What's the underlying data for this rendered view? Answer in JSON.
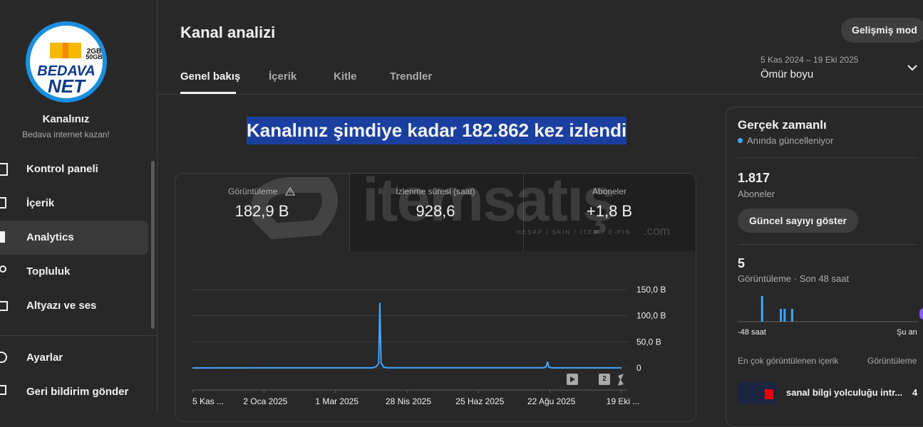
{
  "sidebar": {
    "logo": {
      "top": "2GB",
      "bottom": "50GB",
      "line1": "BEDAVA",
      "line2": "NET"
    },
    "channel_name": "Kanalınız",
    "channel_subtitle": "Bedava internet kazan!",
    "menu": [
      "Kontrol paneli",
      "İçerik",
      "Analytics",
      "Topluluk",
      "Altyazı ve ses"
    ],
    "footer_menu": [
      "Ayarlar",
      "Geri bildirim gönder"
    ]
  },
  "header": {
    "title": "Kanal analizi",
    "advanced_button": "Gelişmiş mod",
    "tabs": [
      "Genel bakış",
      "İçerik",
      "Kitle",
      "Trendler"
    ],
    "date_range": "5 Kas 2024 – 19 Eki 2025",
    "period": "Ömür boyu"
  },
  "headline": "Kanalınız şimdiye kadar 182.862 kez izlendi",
  "metrics": [
    {
      "label": "Görüntüleme",
      "value": "182,9 B"
    },
    {
      "label": "İzlenme süresi (saat)",
      "value": "928,6"
    },
    {
      "label": "Aboneler",
      "value": "+1,8 B"
    }
  ],
  "watermark": {
    "brand": "itemsatış",
    "tagline": "HESAP / SKIN / ITEM / E-PIN",
    "suffix": ".com"
  },
  "chart": {
    "type": "line",
    "color": "#3ea6ff",
    "grid": true,
    "badge": "2",
    "xlim": [
      "2024-11-05",
      "2025-10-19"
    ],
    "xticks": [
      {
        "value": "2024-11-05",
        "label": "5 Kas ..."
      },
      {
        "value": "2025-01-02",
        "label": "2 Oca 2025"
      },
      {
        "value": "2025-03-01",
        "label": "1 Mar 2025"
      },
      {
        "value": "2025-04-28",
        "label": "28 Nis 2025"
      },
      {
        "value": "2025-06-25",
        "label": "25 Haz 2025"
      },
      {
        "value": "2025-08-22",
        "label": "22 Ağu 2025"
      },
      {
        "value": "2025-10-19",
        "label": "19 Eki ..."
      }
    ],
    "ylim": [
      0,
      150000
    ],
    "yticks": [
      0,
      {
        "value": 50000,
        "label": "50,0 B"
      },
      {
        "value": 100000,
        "label": "100,0 B"
      },
      {
        "value": 150000,
        "label": "150,0 B"
      }
    ],
    "x": [
      "2024-11-05",
      "2025-03-31",
      "2025-04-03",
      "2025-04-05",
      "2025-04-06",
      "2025-04-07",
      "2025-04-09",
      "2025-04-12",
      "2025-08-17",
      "2025-08-19",
      "2025-08-20",
      "2025-08-21",
      "2025-08-23",
      "2025-10-19"
    ],
    "values": [
      0,
      200,
      2500,
      8000,
      125000,
      10000,
      1500,
      300,
      300,
      3000,
      12000,
      2000,
      200,
      100
    ]
  },
  "realtime": {
    "title": "Gerçek zamanlı",
    "status": "Anında güncelleniyor",
    "subscribers": "1.817",
    "subscribers_label": "Aboneler",
    "button": "Güncel sayıyı göster",
    "views": "5",
    "views_label": "Görüntüleme · Son 48 saat",
    "chart": {
      "type": "bar",
      "color": "#3ea6ff",
      "x_start": "-48 saat",
      "x_end": "Şu an",
      "values": [
        0,
        0,
        0,
        0,
        0,
        0,
        2,
        0,
        0,
        0,
        0,
        1,
        1,
        0,
        1,
        0,
        0,
        0,
        0,
        0,
        0,
        0,
        0,
        0,
        0,
        0,
        0,
        0,
        0,
        0,
        0,
        0,
        0,
        0,
        0,
        0,
        0,
        0,
        0,
        0,
        0,
        0,
        0,
        0,
        0,
        0,
        0,
        0
      ]
    },
    "top_content_label": "En çok görüntülenen içerik",
    "top_content_metric": "Görüntüleme",
    "top_items": [
      {
        "title": "sanal bilgi yolculuğu intr...",
        "views": "4"
      }
    ]
  }
}
